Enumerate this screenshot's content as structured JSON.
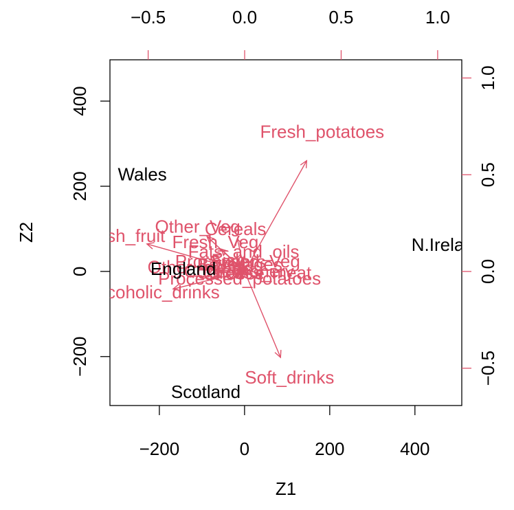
{
  "chart_data": {
    "type": "biplot",
    "xlabel": "Z1",
    "ylabel": "Z2",
    "xlim": [
      -316,
      510
    ],
    "ylim": [
      -315,
      497
    ],
    "xticks": [
      {
        "value": -200,
        "label": "−200"
      },
      0,
      200,
      400
    ],
    "yticks": [
      {
        "value": -200,
        "label": "−200"
      },
      0,
      200,
      400
    ],
    "x2lim": [
      -0.698,
      1.125
    ],
    "y2lim": [
      -0.693,
      1.094
    ],
    "x2ticks": [
      {
        "value": -0.5,
        "label": "−0.5"
      },
      {
        "value": 0,
        "label": "0.0"
      },
      {
        "value": 0.5,
        "label": "0.5"
      },
      {
        "value": 1,
        "label": "1.0"
      }
    ],
    "y2ticks": [
      {
        "value": -0.5,
        "label": "−0.5"
      },
      {
        "value": 0,
        "label": "0.0"
      },
      {
        "value": 0.5,
        "label": "0.5"
      },
      {
        "value": 1,
        "label": "1.0"
      }
    ],
    "axis2_color": "#DF536B",
    "points": {
      "color": "#000000",
      "labels": [
        "England",
        "Wales",
        "Scotland",
        "N.Ireland"
      ],
      "x": [
        -144,
        -240,
        -91,
        477
      ],
      "y": [
        2.5,
        225,
        -286,
        59
      ]
    },
    "loadings": {
      "color": "#DF536B",
      "labels": [
        "Cheese",
        "Carcass_meat",
        "Other_meat",
        "Fish",
        "Fats_and_oils",
        "Sugars",
        "Fresh_potatoes",
        "Fresh_Veg",
        "Other_Veg",
        "Processed_potatoes",
        "Processed_Veg",
        "Fresh_fruit",
        "Cereals",
        "Beverages",
        "Soft_drinks",
        "Alcoholic_drinks",
        "Confectionery"
      ],
      "x": [
        -0.0566,
        0.0476,
        -0.2589,
        -0.0849,
        -0.0054,
        -0.0376,
        0.4017,
        -0.1517,
        -0.2436,
        -0.0265,
        -0.0365,
        -0.633,
        -0.0477,
        -0.026,
        0.2324,
        -0.4636,
        -0.0297
      ],
      "y": [
        -0.0162,
        -0.0139,
        0.0152,
        0.0506,
        0.0954,
        0.0431,
        0.7159,
        0.1448,
        0.2254,
        -0.0429,
        0.0451,
        0.1777,
        0.2126,
        0.0304,
        -0.5556,
        -0.1136,
        -0.0052
      ]
    }
  }
}
